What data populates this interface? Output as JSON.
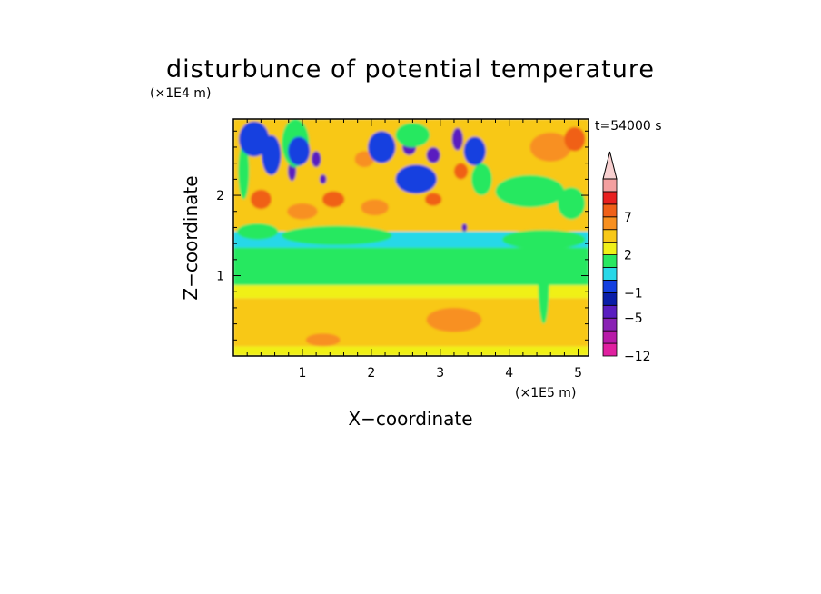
{
  "chart_data": {
    "type": "heatmap",
    "title": "disturbunce of potential temperature",
    "time_label": "t=54000 s",
    "xlabel": "X−coordinate",
    "ylabel": "Z−coordinate",
    "x_unit": "(×1E5 m)",
    "y_unit": "(×1E4 m)",
    "xlim": [
      0,
      5.15
    ],
    "ylim": [
      0,
      2.95
    ],
    "x_ticks": [
      "1",
      "2",
      "3",
      "4",
      "5"
    ],
    "y_ticks": [
      "1",
      "2"
    ],
    "grid": false,
    "legend": "right",
    "colorbar": {
      "levels": [
        -12,
        -10,
        -7,
        -5,
        -3,
        -1,
        0,
        1,
        2,
        4,
        5,
        7,
        9,
        11
      ],
      "colors": [
        "#e020a0",
        "#b81aa8",
        "#8a22b4",
        "#5a1ec0",
        "#0a1ea8",
        "#1440e0",
        "#28d8e8",
        "#28e860",
        "#f0f018",
        "#f8c818",
        "#f89020",
        "#f06018",
        "#e82020",
        "#f4a0a0",
        "#f8d0d0"
      ],
      "tick_labels": [
        "7",
        "2",
        "−1",
        "−5",
        "−12"
      ],
      "tick_values": [
        7,
        2,
        -1,
        -5,
        -12
      ],
      "extend": "max"
    },
    "bands": [
      {
        "z": [
          0.0,
          0.12
        ],
        "value": 1.5
      },
      {
        "z": [
          0.12,
          0.72
        ],
        "value": 3.2
      },
      {
        "z": [
          0.72,
          0.88
        ],
        "value": 1.5
      },
      {
        "z": [
          0.88,
          1.35
        ],
        "value": 0.5
      },
      {
        "z": [
          1.35,
          1.55
        ],
        "value": -0.5
      },
      {
        "z": [
          1.55,
          2.95
        ],
        "value": 2.2
      }
    ],
    "features": [
      {
        "x": 0.3,
        "z": 2.65,
        "rx": 0.12,
        "rz": 0.12,
        "value": -6
      },
      {
        "x": 0.55,
        "z": 2.5,
        "rx": 0.08,
        "rz": 0.18,
        "value": -6
      },
      {
        "x": 0.85,
        "z": 2.3,
        "rx": 0.06,
        "rz": 0.12,
        "value": -6
      },
      {
        "x": 0.95,
        "z": 2.55,
        "rx": 0.1,
        "rz": 0.12,
        "value": -6
      },
      {
        "x": 1.2,
        "z": 2.45,
        "rx": 0.07,
        "rz": 0.1,
        "value": -6
      },
      {
        "x": 1.3,
        "z": 2.2,
        "rx": 0.05,
        "rz": 0.06,
        "value": -6
      },
      {
        "x": 2.15,
        "z": 2.6,
        "rx": 0.12,
        "rz": 0.12,
        "value": -6
      },
      {
        "x": 2.55,
        "z": 2.6,
        "rx": 0.1,
        "rz": 0.1,
        "value": -6
      },
      {
        "x": 2.65,
        "z": 2.2,
        "rx": 0.22,
        "rz": 0.12,
        "value": -6
      },
      {
        "x": 2.9,
        "z": 2.5,
        "rx": 0.1,
        "rz": 0.1,
        "value": -6
      },
      {
        "x": 3.25,
        "z": 2.7,
        "rx": 0.08,
        "rz": 0.14,
        "value": -6
      },
      {
        "x": 3.5,
        "z": 2.55,
        "rx": 0.1,
        "rz": 0.12,
        "value": -6
      },
      {
        "x": 3.9,
        "z": 2.05,
        "rx": 0.04,
        "rz": 0.06,
        "value": -6
      },
      {
        "x": 3.35,
        "z": 1.6,
        "rx": 0.04,
        "rz": 0.05,
        "value": -6
      },
      {
        "x": 1.45,
        "z": 1.95,
        "rx": 0.16,
        "rz": 0.1,
        "value": 6
      },
      {
        "x": 2.9,
        "z": 1.95,
        "rx": 0.12,
        "rz": 0.08,
        "value": 5
      },
      {
        "x": 3.3,
        "z": 2.3,
        "rx": 0.1,
        "rz": 0.1,
        "value": 5
      },
      {
        "x": 4.6,
        "z": 2.6,
        "rx": 0.3,
        "rz": 0.18,
        "value": 4.5
      },
      {
        "x": 4.95,
        "z": 2.7,
        "rx": 0.15,
        "rz": 0.15,
        "value": 5
      },
      {
        "x": 0.4,
        "z": 1.95,
        "rx": 0.15,
        "rz": 0.12,
        "value": 5
      },
      {
        "x": 1.9,
        "z": 2.45,
        "rx": 0.14,
        "rz": 0.1,
        "value": 4
      },
      {
        "x": 2.05,
        "z": 1.85,
        "rx": 0.2,
        "rz": 0.1,
        "value": 4
      },
      {
        "x": 1.0,
        "z": 1.8,
        "rx": 0.22,
        "rz": 0.1,
        "value": 4
      },
      {
        "x": 0.35,
        "z": 1.55,
        "rx": 0.3,
        "rz": 0.1,
        "value": 0.5
      },
      {
        "x": 1.5,
        "z": 1.5,
        "rx": 0.8,
        "rz": 0.12,
        "value": 0.5
      },
      {
        "x": 4.5,
        "z": 1.45,
        "rx": 0.6,
        "rz": 0.12,
        "value": 0.5
      },
      {
        "x": 4.3,
        "z": 2.05,
        "rx": 0.5,
        "rz": 0.2,
        "value": 0.5
      },
      {
        "x": 4.9,
        "z": 1.9,
        "rx": 0.2,
        "rz": 0.2,
        "value": 0.5
      },
      {
        "x": 0.15,
        "z": 2.3,
        "rx": 0.08,
        "rz": 0.35,
        "value": 0.5
      },
      {
        "x": 0.9,
        "z": 2.65,
        "rx": 0.2,
        "rz": 0.3,
        "value": 0.5
      },
      {
        "x": 2.6,
        "z": 2.75,
        "rx": 0.25,
        "rz": 0.15,
        "value": 0.5
      },
      {
        "x": 3.6,
        "z": 2.2,
        "rx": 0.15,
        "rz": 0.2,
        "value": 0.5
      },
      {
        "x": 0.3,
        "z": 2.7,
        "rx": 0.22,
        "rz": 0.22,
        "value": -3
      },
      {
        "x": 0.55,
        "z": 2.5,
        "rx": 0.14,
        "rz": 0.25,
        "value": -3
      },
      {
        "x": 2.15,
        "z": 2.6,
        "rx": 0.2,
        "rz": 0.2,
        "value": -3
      },
      {
        "x": 2.65,
        "z": 2.2,
        "rx": 0.3,
        "rz": 0.18,
        "value": -3
      },
      {
        "x": 3.5,
        "z": 2.55,
        "rx": 0.16,
        "rz": 0.18,
        "value": -3
      },
      {
        "x": 0.95,
        "z": 2.55,
        "rx": 0.16,
        "rz": 0.18,
        "value": -3
      },
      {
        "x": 4.5,
        "z": 0.9,
        "rx": 0.08,
        "rz": 0.5,
        "value": 0.5
      },
      {
        "x": 1.3,
        "z": 0.2,
        "rx": 0.25,
        "rz": 0.08,
        "value": 4
      },
      {
        "x": 3.2,
        "z": 0.45,
        "rx": 0.4,
        "rz": 0.15,
        "value": 4
      }
    ]
  }
}
